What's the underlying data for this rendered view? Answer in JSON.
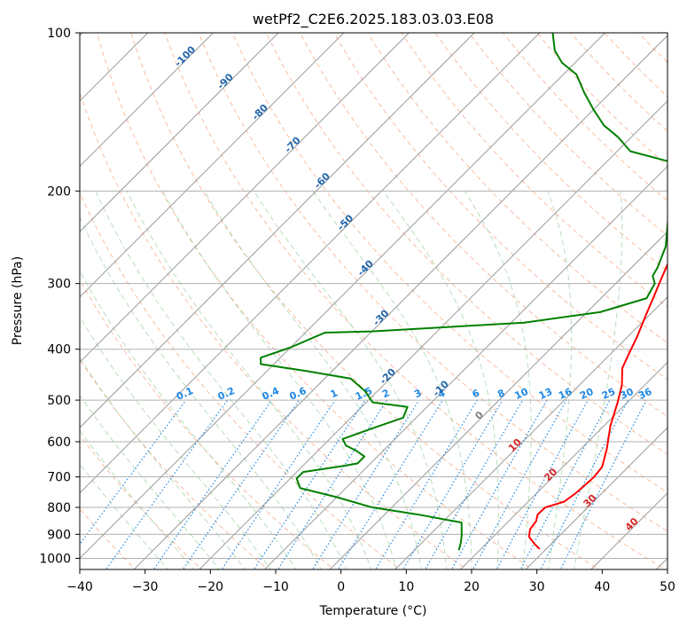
{
  "chart_data": {
    "type": "line",
    "chart_kind": "skew-T log-P diagram",
    "title": "wetPf2_C2E6.2025.183.03.03.E08",
    "xlabel": "Temperature (°C)",
    "ylabel": "Pressure (hPa)",
    "xlim": [
      -40,
      50
    ],
    "ylim": [
      1050,
      100
    ],
    "y_scale": "log",
    "x_ticks": [
      "−40",
      "−30",
      "−20",
      "−10",
      "0",
      "10",
      "20",
      "30",
      "40",
      "50"
    ],
    "y_ticks": [
      "100",
      "200",
      "300",
      "400",
      "500",
      "600",
      "700",
      "800",
      "900",
      "1000"
    ],
    "x_tick_values": [
      -40,
      -30,
      -20,
      -10,
      0,
      10,
      20,
      30,
      40,
      50
    ],
    "y_tick_values": [
      100,
      200,
      300,
      400,
      500,
      600,
      700,
      800,
      900,
      1000
    ],
    "grid": true,
    "colors": {
      "temperature": "#ff0000",
      "dewpoint": "#008000",
      "isotherm": "#9a9a9a",
      "dry_adiabat": "#f4a582",
      "moist_adiabat": "#a6d6a6",
      "mixing_ratio": "#1e88e5",
      "dry_adiabat_label": "#2166ac",
      "mixing_ratio_label": "#1e88e5",
      "isotherm_label_warm": "#d62728",
      "isotherm_label_zero": "#808080"
    },
    "series": [
      {
        "role": "temperature",
        "color": "#ff0000",
        "points": [
          [
            29,
            960
          ],
          [
            27.5,
            940
          ],
          [
            25.5,
            910
          ],
          [
            24.5,
            880
          ],
          [
            24.2,
            850
          ],
          [
            23.4,
            825
          ],
          [
            23.5,
            800
          ],
          [
            25.5,
            780
          ],
          [
            26.0,
            750
          ],
          [
            26.2,
            720
          ],
          [
            26.3,
            700
          ],
          [
            26.0,
            670
          ],
          [
            24.0,
            620
          ],
          [
            21.0,
            560
          ],
          [
            18.5,
            505
          ],
          [
            16.5,
            468
          ],
          [
            14.0,
            435
          ],
          [
            13.0,
            413
          ],
          [
            11.5,
            380
          ],
          [
            9.5,
            345
          ],
          [
            8.0,
            320
          ],
          [
            6.0,
            290
          ],
          [
            3.5,
            255
          ],
          [
            1.0,
            225
          ],
          [
            -1.5,
            202
          ],
          [
            -1.5,
            192
          ],
          [
            -1.0,
            175
          ],
          [
            -1.0,
            160
          ],
          [
            -1.5,
            140
          ],
          [
            -3.0,
            121
          ],
          [
            -4.5,
            110
          ],
          [
            -6.0,
            100
          ]
        ]
      },
      {
        "role": "dewpoint",
        "color": "#008000",
        "points": [
          [
            16.8,
            965
          ],
          [
            16.0,
            935
          ],
          [
            15.0,
            905
          ],
          [
            13.0,
            855
          ],
          [
            5.0,
            825
          ],
          [
            -3.0,
            800
          ],
          [
            -10.0,
            765
          ],
          [
            -17.0,
            735
          ],
          [
            -19.0,
            705
          ],
          [
            -19.0,
            685
          ],
          [
            -14.0,
            668
          ],
          [
            -12.0,
            660
          ],
          [
            -12.0,
            640
          ],
          [
            -14.0,
            625
          ],
          [
            -16.5,
            610
          ],
          [
            -18.0,
            593
          ],
          [
            -15.0,
            565
          ],
          [
            -12.0,
            540
          ],
          [
            -13.0,
            515
          ],
          [
            -19.0,
            505
          ],
          [
            -22.0,
            480
          ],
          [
            -26.0,
            455
          ],
          [
            -34.0,
            440
          ],
          [
            -42.0,
            427
          ],
          [
            -43.0,
            415
          ],
          [
            -40.0,
            397
          ],
          [
            -38.0,
            380
          ],
          [
            -37.0,
            372
          ],
          [
            -30.0,
            370
          ],
          [
            -8.0,
            356
          ],
          [
            2.0,
            340
          ],
          [
            7.0,
            320
          ],
          [
            6.0,
            300
          ],
          [
            4.5,
            290
          ],
          [
            4.0,
            280
          ],
          [
            2.0,
            255
          ],
          [
            -2.0,
            225
          ],
          [
            -4.0,
            212
          ],
          [
            -5.0,
            200
          ],
          [
            -5.0,
            190
          ],
          [
            -6.5,
            180
          ],
          [
            -18.0,
            168
          ],
          [
            -22.0,
            158
          ],
          [
            -26.0,
            150
          ],
          [
            -30.0,
            140
          ],
          [
            -34.0,
            130
          ],
          [
            -38.0,
            120
          ],
          [
            -42.0,
            114
          ],
          [
            -45.0,
            108
          ],
          [
            -48.0,
            100
          ]
        ]
      }
    ],
    "dry_adiabat_labels": [
      "-100",
      "-90",
      "-80",
      "-70",
      "-60",
      "-50",
      "-40",
      "-30",
      "-20",
      "-10"
    ],
    "dry_adiabat_label_values": [
      -100,
      -90,
      -80,
      -70,
      -60,
      -50,
      -40,
      -30,
      -20,
      -10
    ],
    "mixing_ratio_labels": [
      "0.1",
      "0.2",
      "0.4",
      "0.6",
      "1",
      "1.5",
      "2",
      "3",
      "4",
      "6",
      "8",
      "10",
      "13",
      "16",
      "20",
      "25",
      "30",
      "36"
    ],
    "mixing_ratio_label_values": [
      0.1,
      0.2,
      0.4,
      0.6,
      1,
      1.5,
      2,
      3,
      4,
      6,
      8,
      10,
      13,
      16,
      20,
      25,
      30,
      36
    ],
    "isotherm_labels": [
      "0",
      "10",
      "20",
      "30",
      "40"
    ],
    "isotherm_label_values": [
      0,
      10,
      20,
      30,
      40
    ]
  }
}
